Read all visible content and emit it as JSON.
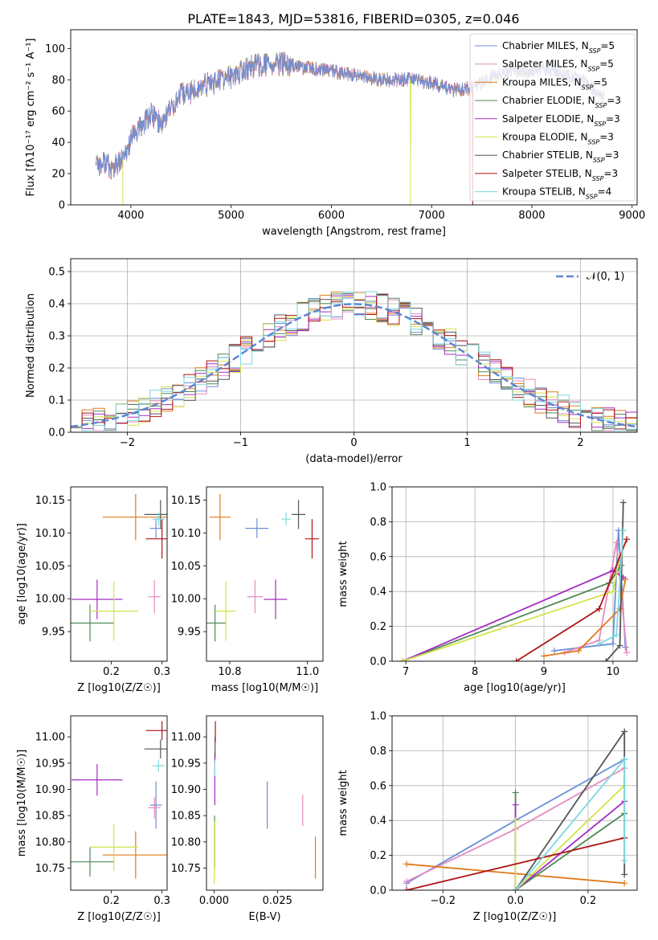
{
  "page": {
    "title": "PLATE=1843, MJD=53816, FIBERID=0305, z=0.046"
  },
  "models": [
    {
      "name": "Chabrier MILES",
      "nssp": "5",
      "color": "#6a8fd8"
    },
    {
      "name": "Salpeter MILES",
      "nssp": "5",
      "color": "#e58cc0"
    },
    {
      "name": "Kroupa MILES",
      "nssp": "5",
      "color": "#e07a1a"
    },
    {
      "name": "Chabrier ELODIE",
      "nssp": "3",
      "color": "#4f8a55"
    },
    {
      "name": "Salpeter ELODIE",
      "nssp": "3",
      "color": "#a42cc2"
    },
    {
      "name": "Kroupa ELODIE",
      "nssp": "3",
      "color": "#d4e34a"
    },
    {
      "name": "Chabrier STELIB",
      "nssp": "3",
      "color": "#555555"
    },
    {
      "name": "Salpeter STELIB",
      "nssp": "3",
      "color": "#b01515"
    },
    {
      "name": "Kroupa STELIB",
      "nssp": "4",
      "color": "#7dd8e0"
    }
  ],
  "chart_data": [
    {
      "id": "spectrum",
      "type": "line",
      "xlabel": "wavelength [Angstrom, rest frame]",
      "ylabel": "Flux [fλ10⁻¹⁷ erg cm⁻² s⁻¹ A⁻¹]",
      "xlim": [
        3400,
        9050
      ],
      "ylim": [
        0,
        112
      ],
      "xticks": [
        4000,
        5000,
        6000,
        7000,
        8000,
        9000
      ],
      "yticks": [
        0,
        20,
        40,
        60,
        80,
        100
      ],
      "x_range": [
        3650,
        8720
      ],
      "continuum_x": [
        3650,
        3700,
        3750,
        3800,
        3850,
        3900,
        3950,
        4000,
        4100,
        4200,
        4300,
        4400,
        4500,
        4600,
        4700,
        4800,
        4900,
        5000,
        5100,
        5200,
        5300,
        5400,
        5500,
        5600,
        5700,
        5800,
        5900,
        6000,
        6100,
        6200,
        6300,
        6400,
        6500,
        6600,
        6700,
        6800,
        6900,
        7000,
        7100,
        7200,
        7300,
        7400,
        7500,
        7600,
        7700,
        7800,
        7900,
        8000,
        8100,
        8200,
        8300,
        8400,
        8500,
        8600,
        8700
      ],
      "continuum_y": [
        30,
        25,
        28,
        22,
        25,
        27,
        32,
        42,
        50,
        58,
        52,
        62,
        70,
        72,
        75,
        78,
        80,
        82,
        85,
        88,
        90,
        89,
        90,
        89,
        88,
        87,
        86,
        86,
        84,
        83,
        82,
        81,
        80,
        80,
        80,
        80,
        79,
        78,
        76,
        73,
        74,
        75,
        78,
        82,
        84,
        85,
        86,
        86,
        87,
        86,
        85,
        82,
        80,
        75,
        70
      ],
      "dropouts": [
        {
          "model": "Kroupa ELODIE",
          "x": 3920
        },
        {
          "model": "Kroupa ELODIE",
          "x": 6790
        },
        {
          "model": "Salpeter STELIB",
          "x": 7410
        }
      ],
      "legend": "upper right"
    },
    {
      "id": "residuals",
      "type": "histogram",
      "xlabel": "(data-model)/error",
      "ylabel": "Normed distribution",
      "xlim": [
        -2.5,
        2.5
      ],
      "ylim": [
        0,
        0.54
      ],
      "xticks": [
        -2,
        -1,
        0,
        1,
        2
      ],
      "yticks": [
        0.0,
        0.1,
        0.2,
        0.3,
        0.4,
        0.5
      ],
      "bin_width": 0.1,
      "bin_centers": [
        -2.45,
        -2.35,
        -2.25,
        -2.15,
        -2.05,
        -1.95,
        -1.85,
        -1.75,
        -1.65,
        -1.55,
        -1.45,
        -1.35,
        -1.25,
        -1.15,
        -1.05,
        -0.95,
        -0.85,
        -0.75,
        -0.65,
        -0.55,
        -0.45,
        -0.35,
        -0.25,
        -0.15,
        -0.05,
        0.05,
        0.15,
        0.25,
        0.35,
        0.45,
        0.55,
        0.65,
        0.75,
        0.85,
        0.95,
        1.05,
        1.15,
        1.25,
        1.35,
        1.45,
        1.55,
        1.65,
        1.75,
        1.85,
        1.95,
        2.05,
        2.15,
        2.25,
        2.35,
        2.45
      ],
      "reference_curve": "N(0,1)",
      "reference_label": "𝒩(0, 1)",
      "grid": true,
      "legend": "upper right"
    },
    {
      "id": "age-vs-Z",
      "type": "errorbar",
      "xlabel": "Z [log10(Z/Z☉)]",
      "ylabel": "age  [log10(age/yr)]",
      "xlim": [
        0.12,
        0.31
      ],
      "ylim": [
        9.905,
        10.17
      ],
      "xticks": [
        0.2,
        0.3
      ],
      "yticks": [
        9.95,
        10.0,
        10.05,
        10.1,
        10.15
      ],
      "points": [
        {
          "model": "Chabrier MILES",
          "x": 0.288,
          "xerr": 0.012,
          "y": 10.107,
          "yerr": 0.015
        },
        {
          "model": "Salpeter MILES",
          "x": 0.285,
          "xerr": 0.012,
          "y": 10.003,
          "yerr": 0.025
        },
        {
          "model": "Kroupa MILES",
          "x": 0.248,
          "xerr": 0.065,
          "y": 10.124,
          "yerr": 0.035
        },
        {
          "model": "Chabrier ELODIE",
          "x": 0.158,
          "xerr": 0.048,
          "y": 9.963,
          "yerr": 0.028
        },
        {
          "model": "Salpeter ELODIE",
          "x": 0.172,
          "xerr": 0.05,
          "y": 9.999,
          "yerr": 0.03
        },
        {
          "model": "Kroupa ELODIE",
          "x": 0.205,
          "xerr": 0.048,
          "y": 9.981,
          "yerr": 0.045
        },
        {
          "model": "Chabrier STELIB",
          "x": 0.297,
          "xerr": 0.032,
          "y": 10.128,
          "yerr": 0.022
        },
        {
          "model": "Salpeter STELIB",
          "x": 0.3,
          "xerr": 0.032,
          "y": 10.091,
          "yerr": 0.03
        },
        {
          "model": "Kroupa STELIB",
          "x": 0.293,
          "xerr": 0.012,
          "y": 10.121,
          "yerr": 0.01
        }
      ]
    },
    {
      "id": "age-vs-mass",
      "type": "errorbar",
      "xlabel": "mass [log10(M/M☉)]",
      "ylabel": "",
      "xlim": [
        10.74,
        11.04
      ],
      "ylim": [
        9.905,
        10.17
      ],
      "xticks": [
        10.8,
        11.0
      ],
      "yticks": [
        9.95,
        10.0,
        10.05,
        10.1,
        10.15
      ],
      "points": [
        {
          "model": "Chabrier MILES",
          "x": 10.87,
          "xerr": 0.03,
          "y": 10.107,
          "yerr": 0.015
        },
        {
          "model": "Salpeter MILES",
          "x": 10.865,
          "xerr": 0.02,
          "y": 10.003,
          "yerr": 0.025
        },
        {
          "model": "Kroupa MILES",
          "x": 10.775,
          "xerr": 0.027,
          "y": 10.124,
          "yerr": 0.035
        },
        {
          "model": "Chabrier ELODIE",
          "x": 10.762,
          "xerr": 0.028,
          "y": 9.963,
          "yerr": 0.028
        },
        {
          "model": "Salpeter ELODIE",
          "x": 10.918,
          "xerr": 0.03,
          "y": 9.999,
          "yerr": 0.03
        },
        {
          "model": "Kroupa ELODIE",
          "x": 10.79,
          "xerr": 0.025,
          "y": 9.981,
          "yerr": 0.045
        },
        {
          "model": "Chabrier STELIB",
          "x": 10.977,
          "xerr": 0.018,
          "y": 10.128,
          "yerr": 0.022
        },
        {
          "model": "Salpeter STELIB",
          "x": 11.012,
          "xerr": 0.018,
          "y": 10.091,
          "yerr": 0.03
        },
        {
          "model": "Kroupa STELIB",
          "x": 10.945,
          "xerr": 0.012,
          "y": 10.121,
          "yerr": 0.01
        }
      ]
    },
    {
      "id": "weight-vs-age",
      "type": "line",
      "xlabel": "age  [log10(age/yr)]",
      "ylabel": "mass weight",
      "xlim": [
        6.8,
        10.35
      ],
      "ylim": [
        0,
        1.0
      ],
      "xticks": [
        7,
        8,
        9,
        10
      ],
      "yticks": [
        0.0,
        0.2,
        0.4,
        0.6,
        0.8,
        1.0
      ],
      "grid": true,
      "series": [
        {
          "model": "Chabrier MILES",
          "x": [
            9.15,
            10.0,
            10.08,
            10.18
          ],
          "y": [
            0.06,
            0.1,
            0.75,
            0.08
          ]
        },
        {
          "model": "Salpeter MILES",
          "x": [
            9.3,
            9.8,
            10.05,
            10.2
          ],
          "y": [
            0.05,
            0.12,
            0.68,
            0.05
          ]
        },
        {
          "model": "Kroupa MILES",
          "x": [
            9.0,
            9.5,
            10.1,
            10.18
          ],
          "y": [
            0.03,
            0.06,
            0.3,
            0.47
          ]
        },
        {
          "model": "Chabrier ELODIE",
          "x": [
            6.95,
            9.95,
            10.12
          ],
          "y": [
            0.0,
            0.45,
            0.55
          ]
        },
        {
          "model": "Salpeter ELODIE",
          "x": [
            6.95,
            10.0,
            10.15
          ],
          "y": [
            0.0,
            0.52,
            0.48
          ]
        },
        {
          "model": "Kroupa ELODIE",
          "x": [
            6.95,
            10.0,
            10.1
          ],
          "y": [
            0.0,
            0.4,
            0.6
          ]
        },
        {
          "model": "Chabrier STELIB",
          "x": [
            9.9,
            10.1,
            10.15
          ],
          "y": [
            0.0,
            0.09,
            0.91
          ]
        },
        {
          "model": "Salpeter STELIB",
          "x": [
            8.6,
            9.8,
            10.2
          ],
          "y": [
            0.0,
            0.3,
            0.7
          ]
        },
        {
          "model": "Kroupa STELIB",
          "x": [
            9.8,
            10.05,
            10.15
          ],
          "y": [
            0.1,
            0.15,
            0.75
          ]
        }
      ]
    },
    {
      "id": "mass-vs-Z",
      "type": "errorbar",
      "xlabel": "Z [log10(Z/Z☉)]",
      "ylabel": "mass [log10(M/M☉)]",
      "xlim": [
        0.12,
        0.31
      ],
      "ylim": [
        10.708,
        11.04
      ],
      "xticks": [
        0.2,
        0.3
      ],
      "yticks": [
        10.75,
        10.8,
        10.85,
        10.9,
        10.95,
        11.0
      ],
      "points": [
        {
          "model": "Chabrier MILES",
          "x": 0.288,
          "xerr": 0.012,
          "y": 10.87,
          "yerr": 0.045
        },
        {
          "model": "Salpeter MILES",
          "x": 0.285,
          "xerr": 0.012,
          "y": 10.865,
          "yerr": 0.02
        },
        {
          "model": "Kroupa MILES",
          "x": 0.248,
          "xerr": 0.065,
          "y": 10.775,
          "yerr": 0.045
        },
        {
          "model": "Chabrier ELODIE",
          "x": 0.158,
          "xerr": 0.048,
          "y": 10.762,
          "yerr": 0.028
        },
        {
          "model": "Salpeter ELODIE",
          "x": 0.172,
          "xerr": 0.05,
          "y": 10.918,
          "yerr": 0.03
        },
        {
          "model": "Kroupa ELODIE",
          "x": 0.205,
          "xerr": 0.048,
          "y": 10.79,
          "yerr": 0.045
        },
        {
          "model": "Chabrier STELIB",
          "x": 0.297,
          "xerr": 0.032,
          "y": 10.977,
          "yerr": 0.018
        },
        {
          "model": "Salpeter STELIB",
          "x": 0.3,
          "xerr": 0.032,
          "y": 11.012,
          "yerr": 0.018
        },
        {
          "model": "Kroupa STELIB",
          "x": 0.293,
          "xerr": 0.012,
          "y": 10.945,
          "yerr": 0.012
        }
      ]
    },
    {
      "id": "mass-vs-EBV",
      "type": "errorbar",
      "xlabel": "E(B-V)",
      "ylabel": "",
      "xlim": [
        -0.003,
        0.043
      ],
      "ylim": [
        10.708,
        11.04
      ],
      "xticks": [
        0.0,
        0.025
      ],
      "yticks": [
        10.75,
        10.8,
        10.85,
        10.9,
        10.95,
        11.0
      ],
      "points": [
        {
          "model": "Chabrier MILES",
          "x": 0.021,
          "xerr": 0,
          "y": 10.87,
          "yerr": 0.045
        },
        {
          "model": "Salpeter MILES",
          "x": 0.035,
          "xerr": 0,
          "y": 10.86,
          "yerr": 0.03
        },
        {
          "model": "Kroupa MILES",
          "x": 0.04,
          "xerr": 0,
          "y": 10.77,
          "yerr": 0.04
        },
        {
          "model": "Chabrier ELODIE",
          "x": 0.0002,
          "xerr": 0,
          "y": 10.8,
          "yerr": 0.05
        },
        {
          "model": "Salpeter ELODIE",
          "x": 0.0003,
          "xerr": 0,
          "y": 10.92,
          "yerr": 0.05
        },
        {
          "model": "Kroupa ELODIE",
          "x": 0.0001,
          "xerr": 0,
          "y": 10.78,
          "yerr": 0.06
        },
        {
          "model": "Chabrier STELIB",
          "x": 0.0004,
          "xerr": 0,
          "y": 10.98,
          "yerr": 0.02
        },
        {
          "model": "Salpeter STELIB",
          "x": 0.0005,
          "xerr": 0,
          "y": 11.01,
          "yerr": 0.02
        },
        {
          "model": "Kroupa STELIB",
          "x": 0.0003,
          "xerr": 0,
          "y": 10.94,
          "yerr": 0.015
        }
      ]
    },
    {
      "id": "weight-vs-Z",
      "type": "line",
      "xlabel": "Z [log10(Z/Z☉)]",
      "ylabel": "mass weight",
      "xlim": [
        -0.34,
        0.335
      ],
      "ylim": [
        0,
        1.0
      ],
      "xticks": [
        -0.2,
        0.0,
        0.2
      ],
      "yticks": [
        0.0,
        0.2,
        0.4,
        0.6,
        0.8,
        1.0
      ],
      "grid": true,
      "series": [
        {
          "model": "Chabrier MILES",
          "x": [
            -0.3,
            0.0,
            0.3
          ],
          "y": [
            0.04,
            0.4,
            0.75
          ]
        },
        {
          "model": "Salpeter MILES",
          "x": [
            -0.3,
            0.0,
            0.3
          ],
          "y": [
            0.05,
            0.35,
            0.7
          ]
        },
        {
          "model": "Kroupa MILES",
          "x": [
            -0.3,
            0.3
          ],
          "y": [
            0.15,
            0.04
          ]
        },
        {
          "model": "Chabrier ELODIE",
          "x": [
            0.0,
            0.0,
            0.3
          ],
          "y": [
            0.56,
            0.0,
            0.44
          ]
        },
        {
          "model": "Salpeter ELODIE",
          "x": [
            0.0,
            0.0,
            0.3
          ],
          "y": [
            0.49,
            0.0,
            0.51
          ]
        },
        {
          "model": "Kroupa ELODIE",
          "x": [
            0.0,
            0.0,
            0.3
          ],
          "y": [
            0.4,
            0.0,
            0.6
          ]
        },
        {
          "model": "Chabrier STELIB",
          "x": [
            0.0,
            0.3,
            0.3
          ],
          "y": [
            0.0,
            0.91,
            0.09
          ]
        },
        {
          "model": "Salpeter STELIB",
          "x": [
            -0.3,
            0.3
          ],
          "y": [
            0.0,
            0.3
          ]
        },
        {
          "model": "Kroupa STELIB",
          "x": [
            0.0,
            0.3,
            0.3
          ],
          "y": [
            0.0,
            0.75,
            0.17
          ]
        }
      ]
    }
  ]
}
